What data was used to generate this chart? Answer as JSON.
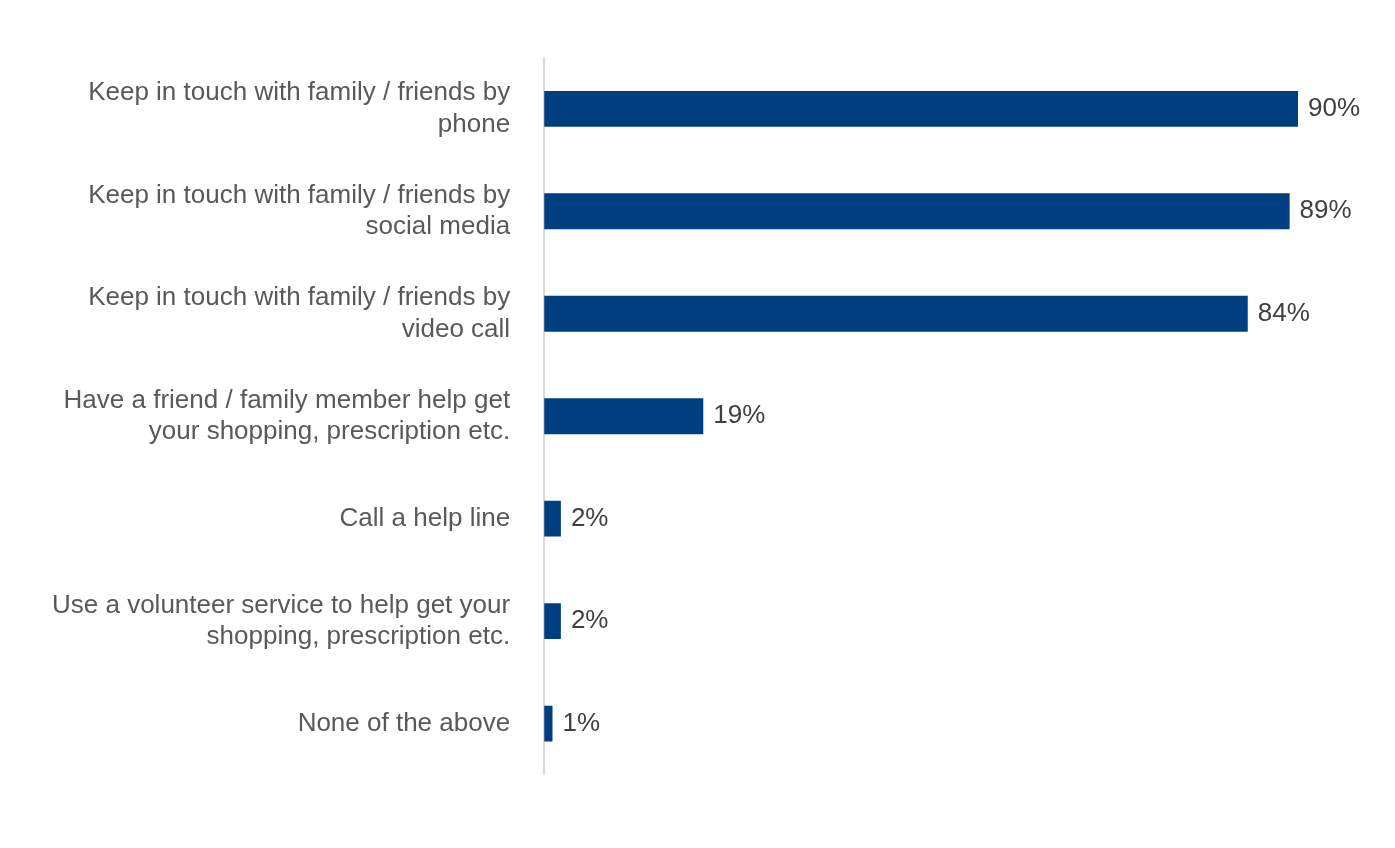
{
  "chart_data": {
    "type": "bar",
    "orientation": "horizontal",
    "categories": [
      "Keep in touch with family / friends by phone",
      "Keep in touch with family / friends by social media",
      "Keep in touch with family / friends by video call",
      "Have a friend / family member help get your shopping, prescription etc.",
      "Call a help line",
      "Use a volunteer service to help get your shopping, prescription etc.",
      "None of the above"
    ],
    "values": [
      90,
      89,
      84,
      19,
      2,
      2,
      1
    ],
    "value_labels": [
      "90%",
      "89%",
      "84%",
      "19%",
      "2%",
      "2%",
      "1%"
    ],
    "color": "#003f7f",
    "tick_labels": "y"
  }
}
